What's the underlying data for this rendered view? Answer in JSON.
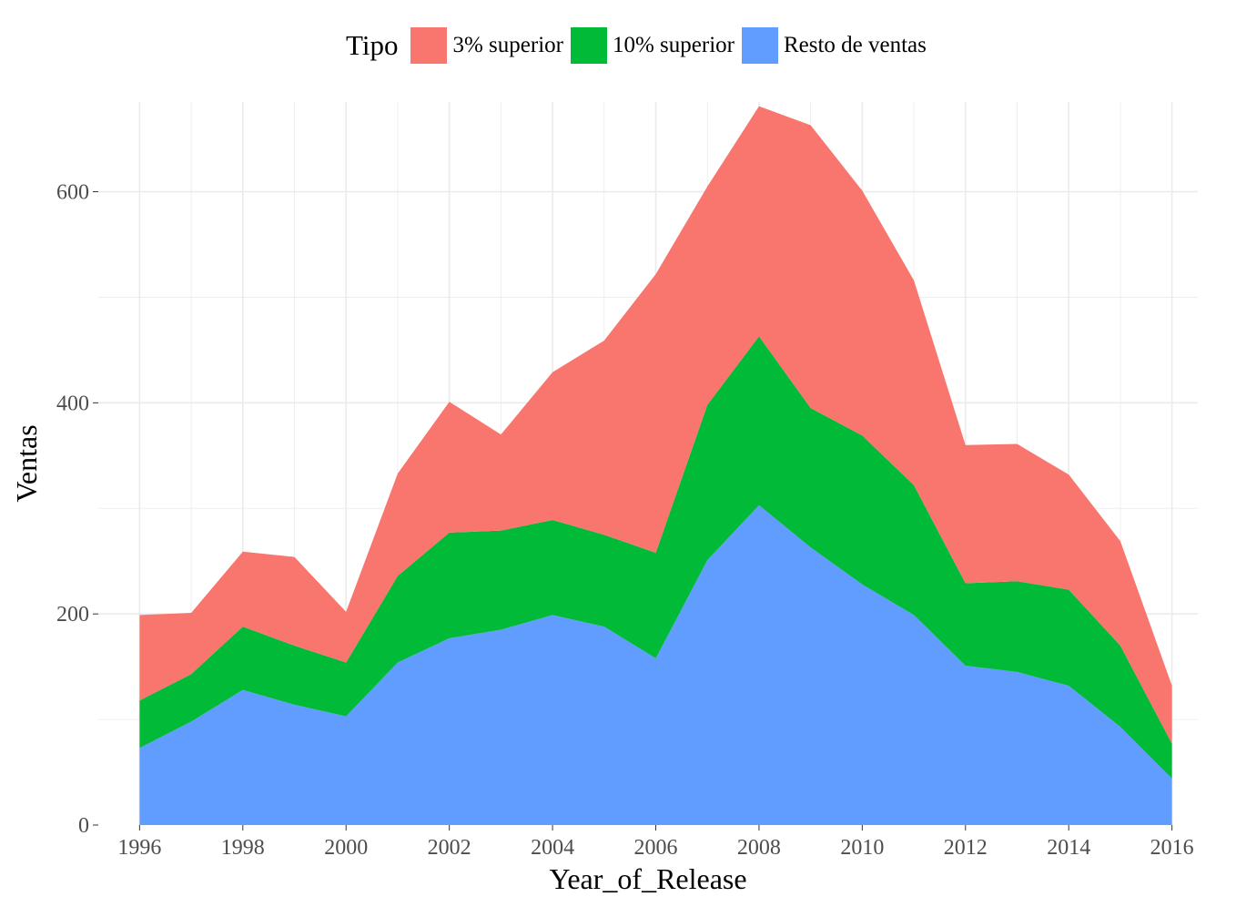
{
  "chart_data": {
    "type": "area",
    "stacked": true,
    "xlabel": "Year_of_Release",
    "ylabel": "Ventas",
    "legend_title": "Tipo",
    "legend_position": "top",
    "grid": true,
    "xlim": [
      1995.2,
      2016.5
    ],
    "ylim": [
      0,
      685
    ],
    "x_ticks": [
      1996,
      1998,
      2000,
      2002,
      2004,
      2006,
      2008,
      2010,
      2012,
      2014,
      2016
    ],
    "y_ticks": [
      0,
      200,
      400,
      600
    ],
    "x": [
      1996,
      1997,
      1998,
      1999,
      2000,
      2001,
      2002,
      2003,
      2004,
      2005,
      2006,
      2007,
      2008,
      2009,
      2010,
      2011,
      2012,
      2013,
      2014,
      2015,
      2016
    ],
    "series": [
      {
        "name": "Resto de ventas",
        "color": "#619CFF",
        "values": [
          73,
          98,
          128,
          114,
          103,
          154,
          177,
          185,
          199,
          188,
          158,
          251,
          303,
          263,
          228,
          199,
          151,
          145,
          132,
          93,
          44
        ]
      },
      {
        "name": "10% superior",
        "color": "#00BA38",
        "values": [
          45,
          45,
          60,
          56,
          51,
          82,
          100,
          94,
          90,
          87,
          100,
          147,
          160,
          132,
          141,
          123,
          78,
          86,
          91,
          77,
          33
        ]
      },
      {
        "name": "3% superior",
        "color": "#F8766D",
        "values": [
          81,
          58,
          71,
          84,
          48,
          97,
          124,
          91,
          140,
          184,
          264,
          207,
          218,
          268,
          232,
          194,
          131,
          130,
          109,
          99,
          55
        ]
      }
    ],
    "legend_order": [
      "3% superior",
      "10% superior",
      "Resto de ventas"
    ]
  }
}
